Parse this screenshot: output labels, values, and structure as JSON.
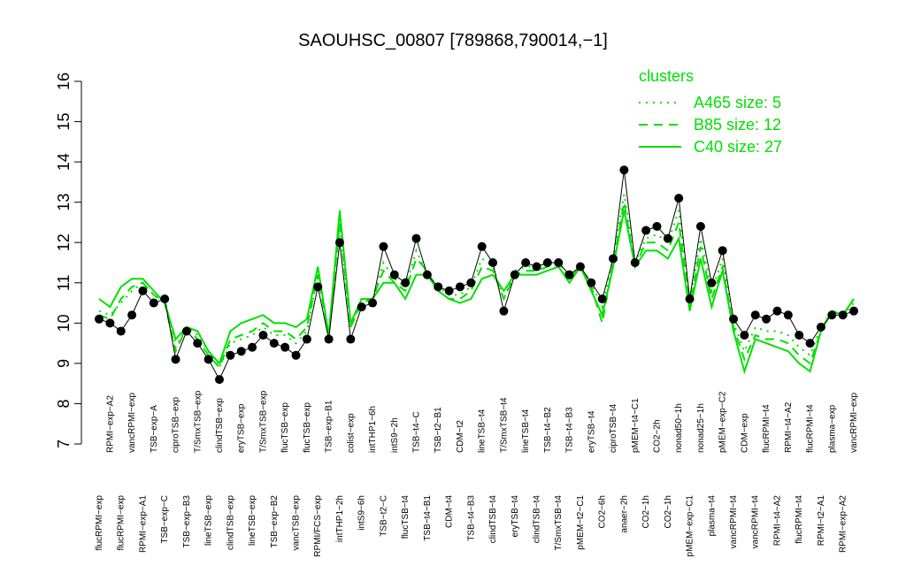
{
  "chart_data": {
    "type": "line",
    "title": "SAOUHSC_00807 [789868,790014,−1]",
    "categories": [
      "flucRPMI−exp",
      "RPMI−exp−A2",
      "flucRPMI−exp",
      "vancRPMI−exp",
      "RPMI−exp−A1",
      "TSB−exp−A",
      "TSB−exp−C",
      "ciproTSB−exp",
      "TSB−exp−B3",
      "T/SmxTSB−exp",
      "lineTSB−exp",
      "clindTSB−exp",
      "clindTSB−exp",
      "eryTSB−exp",
      "lineTSB−exp",
      "T/SmxTSB−exp",
      "TSB−exp−B2",
      "flucTSB−exp",
      "vancTSB−exp",
      "flucTSB−exp",
      "RPMI/FCS−exp",
      "TSB−exp−B1",
      "intTHP1−2h",
      "colist−exp",
      "intS9−6h",
      "intTHP1−6h",
      "TSB−t2−C",
      "intS9−2h",
      "flucTSB−t4",
      "TSB−t4−C",
      "TSB−t4−B1",
      "TSB−t2−B1",
      "CDM−t4",
      "CDM−t2",
      "TSB−t4−B3",
      "lineTSB−t4",
      "clindTSB−t4",
      "T/SmxTSB−t4",
      "eryTSB−t4",
      "lineTSB−t4",
      "clindTSB−t4",
      "TSB−t4−B2",
      "T/SmxTSB−t4",
      "TSB−t4−B3",
      "pMEM−t2−C1",
      "eryTSB−t4",
      "CO2−6h",
      "ciproTSB−t4",
      "anaer−2h",
      "pMEM−t4−C1",
      "CO2−1h",
      "CO2−2h",
      "CO2−1h",
      "nonad50−1h",
      "pMEM−exp−C1",
      "nonad25−1h",
      "plasma−t4",
      "pMEM−exp−C2",
      "vancRPMI−t4",
      "CDM−exp",
      "vancRPMI−t4",
      "flucRPMI−t4",
      "RPMI−t4−A2",
      "RPMI−t4−A2",
      "flucRPMI−t4",
      "flucRPMI−t4",
      "RPMI−t2−A1",
      "plasma−exp",
      "RPMI−exp−A2",
      "vancRPMI−exp"
    ],
    "values": [
      10.1,
      10.0,
      9.8,
      10.2,
      10.8,
      10.5,
      10.6,
      9.1,
      9.8,
      9.5,
      9.1,
      8.6,
      9.2,
      9.3,
      9.4,
      9.7,
      9.5,
      9.4,
      9.2,
      9.6,
      10.9,
      9.6,
      12.0,
      9.6,
      10.4,
      10.5,
      11.9,
      11.2,
      11.0,
      12.1,
      11.2,
      10.9,
      10.8,
      10.9,
      11.0,
      11.9,
      11.5,
      10.3,
      11.2,
      11.5,
      11.4,
      11.5,
      11.5,
      11.2,
      11.4,
      11.0,
      10.6,
      11.6,
      13.8,
      11.5,
      12.3,
      12.4,
      12.1,
      13.1,
      10.6,
      12.4,
      11.0,
      11.8,
      10.1,
      9.7,
      10.2,
      10.1,
      10.3,
      10.2,
      9.7,
      9.5,
      9.9,
      10.2,
      10.2,
      10.3
    ],
    "color": "#000000",
    "series": [
      {
        "name": "A465 size: 5",
        "color": "#00e000",
        "dash": "dotted",
        "values": [
          10.3,
          10.2,
          10.5,
          10.8,
          11.0,
          10.7,
          10.6,
          9.4,
          9.9,
          9.7,
          9.3,
          8.9,
          9.5,
          9.6,
          9.7,
          9.9,
          9.7,
          9.7,
          9.5,
          9.8,
          11.2,
          9.7,
          12.4,
          9.9,
          10.6,
          10.6,
          11.5,
          11.1,
          10.9,
          11.8,
          11.2,
          10.9,
          10.7,
          10.7,
          10.9,
          11.6,
          11.4,
          10.6,
          11.3,
          11.4,
          11.4,
          11.5,
          11.5,
          11.2,
          11.4,
          11.0,
          10.4,
          11.6,
          13.2,
          11.5,
          12.1,
          12.2,
          12.0,
          12.8,
          10.5,
          12.1,
          10.8,
          11.6,
          10.0,
          9.3,
          9.9,
          9.8,
          9.8,
          9.7,
          9.4,
          9.2,
          9.9,
          10.3,
          10.2,
          10.5
        ]
      },
      {
        "name": "B85 size: 12",
        "color": "#00e000",
        "dash": "dashed",
        "values": [
          10.2,
          10.1,
          10.6,
          10.9,
          11.0,
          10.7,
          10.5,
          9.3,
          9.9,
          9.6,
          9.2,
          8.9,
          9.6,
          9.7,
          9.8,
          10.0,
          9.8,
          9.8,
          9.6,
          9.9,
          11.2,
          9.7,
          12.5,
          9.9,
          10.5,
          10.6,
          11.3,
          11.0,
          10.8,
          11.6,
          11.3,
          10.8,
          10.6,
          10.6,
          10.8,
          11.4,
          11.3,
          10.6,
          11.2,
          11.3,
          11.3,
          11.4,
          11.5,
          11.1,
          11.4,
          10.9,
          10.0,
          11.5,
          13.0,
          11.4,
          12.0,
          12.0,
          11.8,
          12.5,
          10.4,
          11.9,
          10.6,
          11.4,
          9.9,
          9.1,
          9.7,
          9.6,
          9.6,
          9.5,
          9.2,
          9.0,
          9.8,
          10.3,
          10.2,
          10.6
        ]
      },
      {
        "name": "C40 size: 27",
        "color": "#00e000",
        "dash": "solid",
        "values": [
          10.6,
          10.4,
          10.9,
          11.1,
          11.1,
          10.8,
          10.5,
          9.6,
          9.9,
          9.8,
          9.3,
          9.0,
          9.8,
          10.0,
          10.1,
          10.2,
          10.0,
          10.0,
          9.9,
          10.1,
          11.4,
          9.7,
          12.8,
          10.0,
          10.6,
          10.6,
          11.0,
          11.0,
          10.6,
          11.2,
          11.2,
          10.8,
          10.6,
          10.5,
          10.6,
          11.1,
          11.2,
          10.8,
          11.2,
          11.2,
          11.2,
          11.3,
          11.4,
          11.0,
          11.4,
          10.8,
          10.2,
          11.4,
          12.8,
          11.4,
          11.8,
          11.8,
          11.6,
          12.1,
          10.3,
          11.6,
          10.4,
          11.3,
          9.8,
          8.8,
          9.6,
          9.5,
          9.4,
          9.3,
          9.0,
          8.8,
          9.8,
          10.3,
          10.2,
          10.6
        ]
      }
    ],
    "legend_title": "clusters",
    "legend": "top-right",
    "ylim": [
      7,
      16
    ],
    "yticks": [
      7,
      8,
      9,
      10,
      11,
      12,
      13,
      14,
      15,
      16
    ]
  }
}
